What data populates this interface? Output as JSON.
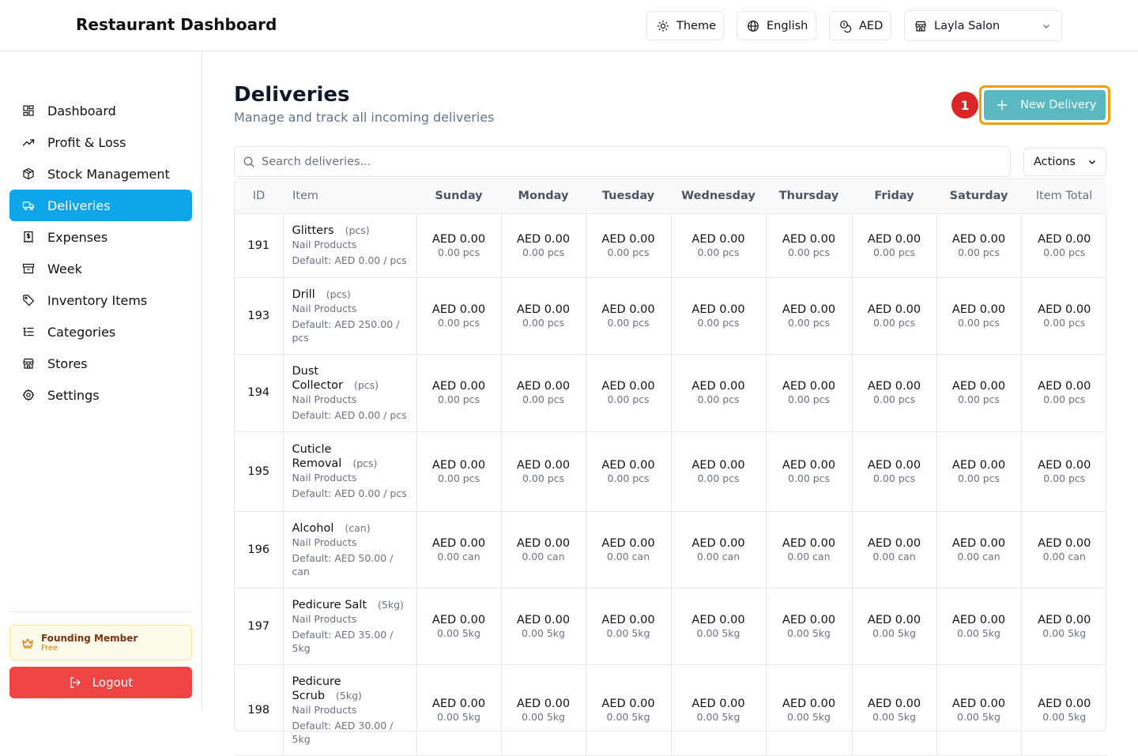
{
  "app": {
    "title": "Restaurant Dashboard"
  },
  "topbar": {
    "theme": "Theme",
    "language": "English",
    "currency": "AED",
    "store": "Layla Salon"
  },
  "sidebar": {
    "items": [
      {
        "label": "Dashboard",
        "icon": "grid-icon"
      },
      {
        "label": "Profit & Loss",
        "icon": "trending-up-icon"
      },
      {
        "label": "Stock Management",
        "icon": "package-icon"
      },
      {
        "label": "Deliveries",
        "icon": "truck-icon",
        "active": true
      },
      {
        "label": "Expenses",
        "icon": "receipt-icon"
      },
      {
        "label": "Week",
        "icon": "archive-icon"
      },
      {
        "label": "Inventory Items",
        "icon": "tag-icon"
      },
      {
        "label": "Categories",
        "icon": "list-tree-icon"
      },
      {
        "label": "Stores",
        "icon": "store-icon"
      },
      {
        "label": "Settings",
        "icon": "gear-icon"
      }
    ],
    "member_title": "Founding Member",
    "member_plan": "Free",
    "logout": "Logout"
  },
  "page": {
    "title": "Deliveries",
    "subtitle": "Manage and track all incoming deliveries"
  },
  "step_badge": "1",
  "new_delivery": "New Delivery",
  "search": {
    "placeholder": "Search deliveries..."
  },
  "actions": "Actions",
  "table": {
    "columns": [
      "ID",
      "Item",
      "Sunday",
      "Monday",
      "Tuesday",
      "Wednesday",
      "Thursday",
      "Friday",
      "Saturday",
      "Item Total"
    ],
    "rows": [
      {
        "id": "191",
        "name": "Glitters",
        "unit": "(pcs)",
        "category": "Nail Products",
        "default": "Default: AED 0.00 / pcs",
        "amount": "AED 0.00",
        "qty": "0.00 pcs"
      },
      {
        "id": "193",
        "name": "Drill",
        "unit": "(pcs)",
        "category": "Nail Products",
        "default": "Default: AED 250.00 / pcs",
        "amount": "AED 0.00",
        "qty": "0.00 pcs"
      },
      {
        "id": "194",
        "name": "Dust Collector",
        "unit": "(pcs)",
        "category": "Nail Products",
        "default": "Default: AED 0.00 / pcs",
        "amount": "AED 0.00",
        "qty": "0.00 pcs"
      },
      {
        "id": "195",
        "name": "Cuticle Removal",
        "unit": "(pcs)",
        "category": "Nail Products",
        "default": "Default: AED 0.00 / pcs",
        "amount": "AED 0.00",
        "qty": "0.00 pcs"
      },
      {
        "id": "196",
        "name": "Alcohol",
        "unit": "(can)",
        "category": "Nail Products",
        "default": "Default: AED 50.00 / can",
        "amount": "AED 0.00",
        "qty": "0.00 can"
      },
      {
        "id": "197",
        "name": "Pedicure Salt",
        "unit": "(5kg)",
        "category": "Nail Products",
        "default": "Default: AED 35.00 / 5kg",
        "amount": "AED 0.00",
        "qty": "0.00 5kg"
      },
      {
        "id": "198",
        "name": "Pedicure Scrub",
        "unit": "(5kg)",
        "category": "Nail Products",
        "default": "Default: AED 30.00 / 5kg",
        "amount": "AED 0.00",
        "qty": "0.00 5kg"
      }
    ]
  },
  "colors": {
    "active": "#0ea5e9",
    "accent": "#5ab8c1",
    "highlight": "#f59e0b",
    "danger": "#ef4444"
  }
}
